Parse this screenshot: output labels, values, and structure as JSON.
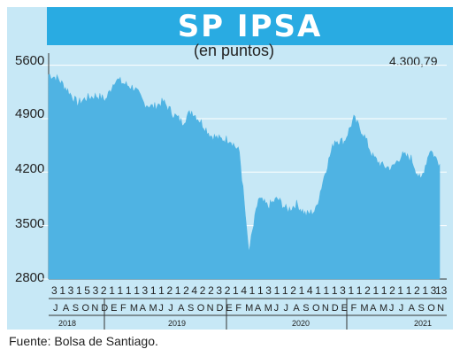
{
  "chart_data": {
    "type": "area",
    "title": "SP IPSA",
    "subtitle": "(en puntos)",
    "last_value_label": "4.300,79",
    "ylim": [
      2800,
      5700
    ],
    "yticks": [
      2800,
      3500,
      4200,
      4900,
      5600
    ],
    "ytick_labels": [
      "2800",
      "3500",
      "4200",
      "4900",
      "5600"
    ],
    "series_color": "#4fb3e3",
    "day_labels": [
      "3",
      "1",
      "3",
      "1",
      "5",
      "3",
      "2",
      "1",
      "1",
      "1",
      "1",
      "3",
      "1",
      "1",
      "2",
      "1",
      "2",
      "4",
      "2",
      "2",
      "3",
      "2",
      "1",
      "4",
      "1",
      "1",
      "3",
      "1",
      "1",
      "2",
      "1",
      "4",
      "1",
      "1",
      "1",
      "3",
      "1",
      "1",
      "2",
      "1",
      "1",
      "2",
      "1",
      "1",
      "2",
      "1",
      "3"
    ],
    "month_labels": [
      "J",
      "A",
      "S",
      "O",
      "N",
      "D",
      "E",
      "F",
      "M",
      "A",
      "M",
      "J",
      "J",
      "A",
      "S",
      "O",
      "N",
      "D",
      "E",
      "F",
      "M",
      "A",
      "M",
      "J",
      "J",
      "A",
      "S",
      "O",
      "N",
      "D",
      "E",
      "F",
      "M",
      "A",
      "M",
      "J",
      "J",
      "A",
      "S",
      "O",
      "N"
    ],
    "year_labels": [
      "2018",
      "2019",
      "2020",
      "2021"
    ],
    "final_tick_label": "13",
    "x": [
      "2018-06",
      "2018-07",
      "2018-08",
      "2018-09",
      "2018-10",
      "2018-11",
      "2018-12",
      "2019-01",
      "2019-02",
      "2019-03",
      "2019-04",
      "2019-05",
      "2019-06",
      "2019-07",
      "2019-08",
      "2019-09",
      "2019-10",
      "2019-11",
      "2019-12",
      "2020-01",
      "2020-02",
      "2020-03",
      "2020-04",
      "2020-05",
      "2020-06",
      "2020-07",
      "2020-08",
      "2020-09",
      "2020-10",
      "2020-11",
      "2020-12",
      "2021-01",
      "2021-02",
      "2021-03",
      "2021-04",
      "2021-05",
      "2021-06",
      "2021-07",
      "2021-08",
      "2021-09",
      "2021-10",
      "2021-11"
    ],
    "values": [
      5480,
      5420,
      5270,
      5100,
      5170,
      5200,
      5150,
      5420,
      5350,
      5300,
      5100,
      5050,
      5120,
      4970,
      4850,
      5000,
      4850,
      4680,
      4630,
      4630,
      4460,
      3150,
      3850,
      3750,
      3850,
      3700,
      3780,
      3640,
      3700,
      4200,
      4620,
      4600,
      4900,
      4700,
      4400,
      4280,
      4250,
      4420,
      4380,
      4080,
      4500,
      4300
    ]
  },
  "source": "Fuente: Bolsa de Santiago."
}
